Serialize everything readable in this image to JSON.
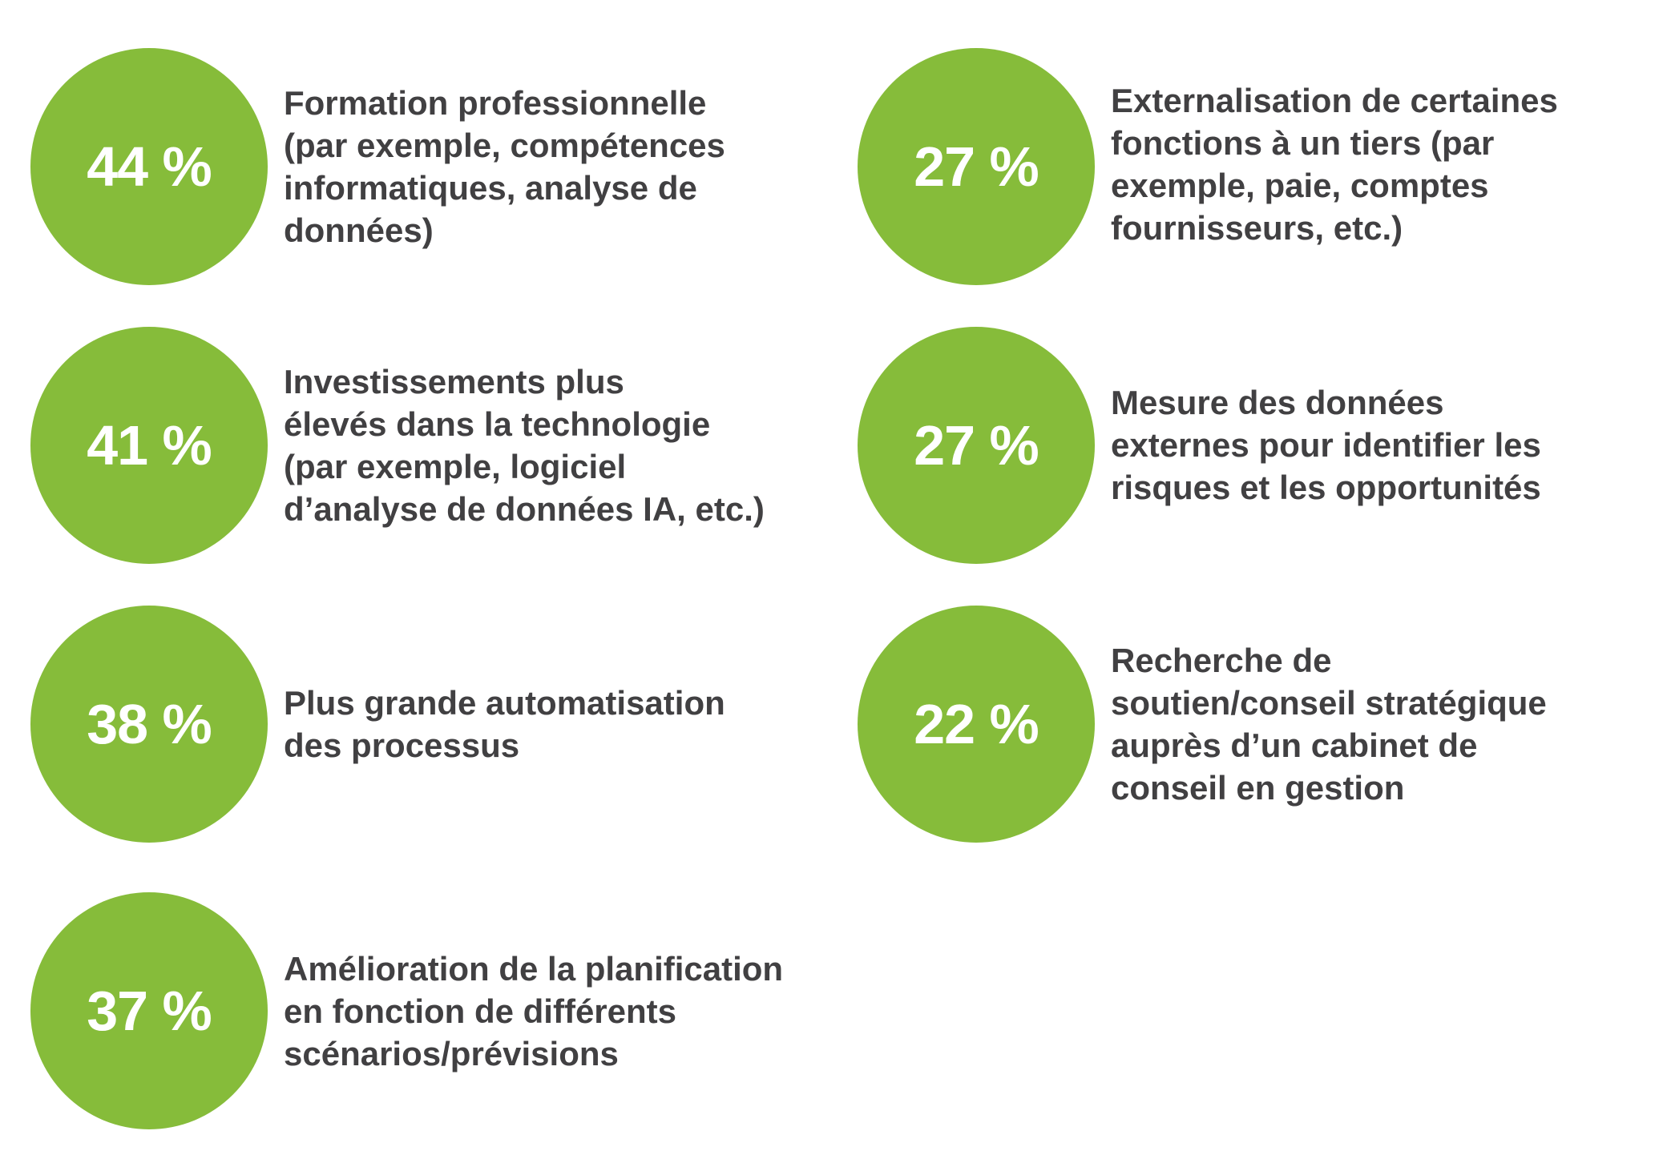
{
  "chart_data": {
    "type": "bar",
    "unit": "%",
    "accent_color": "#86bc3a",
    "text_color": "#414042",
    "items": [
      {
        "value": 44,
        "value_label": "44 %",
        "label": "Formation professionnelle\n(par exemple, compétences\ninformatiques, analyse de\ndonnées)"
      },
      {
        "value": 41,
        "value_label": "41 %",
        "label": "Investissements plus\nélevés dans la technologie\n(par exemple, logiciel\nd’analyse de données IA, etc.)"
      },
      {
        "value": 38,
        "value_label": "38 %",
        "label": "Plus grande automatisation\ndes processus"
      },
      {
        "value": 37,
        "value_label": "37 %",
        "label": "Amélioration de la planification\nen fonction de différents\nscénarios/prévisions"
      },
      {
        "value": 27,
        "value_label": "27 %",
        "label": "Externalisation de certaines\nfonctions à un tiers (par\nexemple, paie, comptes\nfournisseurs, etc.)"
      },
      {
        "value": 27,
        "value_label": "27 %",
        "label": "Mesure des données\nexternes pour identifier les\nrisques et les opportunités"
      },
      {
        "value": 22,
        "value_label": "22 %",
        "label": "Recherche de\nsoutien/conseil stratégique\nauprès d’un cabinet de\nconseil en gestion"
      }
    ]
  }
}
